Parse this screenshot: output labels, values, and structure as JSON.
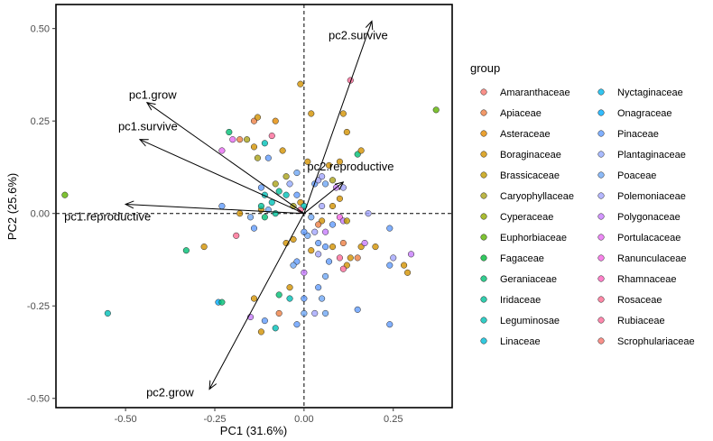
{
  "chart_data": {
    "type": "scatter",
    "xlabel": "PC1 (31.6%)",
    "ylabel": "PC2 (25.6%)",
    "xlim": [
      -0.695,
      0.415
    ],
    "ylim": [
      -0.525,
      0.565
    ],
    "x_ticks": [
      -0.5,
      -0.25,
      0.0,
      0.25
    ],
    "x_tick_labels": [
      "-0.50",
      "-0.25",
      "0.00",
      "0.25"
    ],
    "y_ticks": [
      -0.5,
      -0.25,
      0.0,
      0.25,
      0.5
    ],
    "y_tick_labels": [
      "-0.50",
      "-0.25",
      "0.00",
      "0.25",
      "0.50"
    ],
    "grid": false,
    "reference_lines": {
      "x": 0,
      "y": 0
    },
    "legend": {
      "title": "group",
      "placement": "right",
      "groups": [
        {
          "name": "Amaranthaceae",
          "color": "#F8766D"
        },
        {
          "name": "Apiaceae",
          "color": "#EE8043"
        },
        {
          "name": "Asteraceae",
          "color": "#E38900"
        },
        {
          "name": "Boraginaceae",
          "color": "#D39200"
        },
        {
          "name": "Brassicaceae",
          "color": "#C09B00"
        },
        {
          "name": "Caryophyllaceae",
          "color": "#AAA219"
        },
        {
          "name": "Cyperaceae",
          "color": "#93AA00"
        },
        {
          "name": "Euphorbiaceae",
          "color": "#5EB300"
        },
        {
          "name": "Fagaceae",
          "color": "#00BA38"
        },
        {
          "name": "Geraniaceae",
          "color": "#00BF74"
        },
        {
          "name": "Iridaceae",
          "color": "#00C19A"
        },
        {
          "name": "Leguminosae",
          "color": "#00C0B8"
        },
        {
          "name": "Linaceae",
          "color": "#00BCD6"
        },
        {
          "name": "Nyctaginaceae",
          "color": "#00B6EB"
        },
        {
          "name": "Onagraceae",
          "color": "#00ABFD"
        },
        {
          "name": "Pinaceae",
          "color": "#619CFF"
        },
        {
          "name": "Plantaginaceae",
          "color": "#93AAFF"
        },
        {
          "name": "Poaceae",
          "color": "#6FA8F5"
        },
        {
          "name": "Polemoniaceae",
          "color": "#A3A5FF"
        },
        {
          "name": "Polygonaceae",
          "color": "#C77CFF"
        },
        {
          "name": "Portulacaceae",
          "color": "#E76BF3"
        },
        {
          "name": "Ranunculaceae",
          "color": "#F564E3"
        },
        {
          "name": "Rhamnaceae",
          "color": "#FF62BC"
        },
        {
          "name": "Rosaceae",
          "color": "#FF6C91"
        },
        {
          "name": "Rubiaceae",
          "color": "#FF6A98"
        },
        {
          "name": "Scrophulariaceae",
          "color": "#F8766D"
        }
      ]
    },
    "loadings": [
      {
        "name": "pc2.survive",
        "x": 0.19,
        "y": 0.52
      },
      {
        "name": "pc1.grow",
        "x": -0.44,
        "y": 0.3
      },
      {
        "name": "pc1.survive",
        "x": -0.46,
        "y": 0.2
      },
      {
        "name": "pc2.reproductive",
        "x": 0.11,
        "y": 0.085
      },
      {
        "name": "pc1.reproductive",
        "x": -0.5,
        "y": 0.025
      },
      {
        "name": "pc2.grow",
        "x": -0.265,
        "y": -0.475
      }
    ],
    "points": [
      {
        "x": -0.67,
        "y": 0.05,
        "g": "Euphorbiaceae"
      },
      {
        "x": 0.37,
        "y": 0.28,
        "g": "Euphorbiaceae"
      },
      {
        "x": -0.55,
        "y": -0.27,
        "g": "Leguminosae"
      },
      {
        "x": -0.33,
        "y": -0.1,
        "g": "Geraniaceae"
      },
      {
        "x": -0.28,
        "y": -0.09,
        "g": "Boraginaceae"
      },
      {
        "x": -0.24,
        "y": -0.24,
        "g": "Onagraceae"
      },
      {
        "x": -0.23,
        "y": -0.24,
        "g": "Geraniaceae"
      },
      {
        "x": -0.23,
        "y": 0.17,
        "g": "Portulacaceae"
      },
      {
        "x": -0.2,
        "y": 0.2,
        "g": "Portulacaceae"
      },
      {
        "x": -0.21,
        "y": 0.22,
        "g": "Geraniaceae"
      },
      {
        "x": -0.18,
        "y": 0.2,
        "g": "Apiaceae"
      },
      {
        "x": -0.16,
        "y": 0.2,
        "g": "Caryophyllaceae"
      },
      {
        "x": -0.14,
        "y": 0.25,
        "g": "Apiaceae"
      },
      {
        "x": -0.13,
        "y": 0.26,
        "g": "Boraginaceae"
      },
      {
        "x": -0.14,
        "y": 0.18,
        "g": "Boraginaceae"
      },
      {
        "x": -0.13,
        "y": 0.15,
        "g": "Caryophyllaceae"
      },
      {
        "x": -0.11,
        "y": 0.19,
        "g": "Leguminosae"
      },
      {
        "x": -0.09,
        "y": 0.21,
        "g": "Rubiaceae"
      },
      {
        "x": -0.08,
        "y": 0.25,
        "g": "Asteraceae"
      },
      {
        "x": -0.06,
        "y": 0.17,
        "g": "Boraginaceae"
      },
      {
        "x": -0.1,
        "y": 0.15,
        "g": "Pinaceae"
      },
      {
        "x": -0.12,
        "y": 0.07,
        "g": "Pinaceae"
      },
      {
        "x": -0.11,
        "y": 0.05,
        "g": "Leguminosae"
      },
      {
        "x": -0.12,
        "y": 0.01,
        "g": "Boraginaceae"
      },
      {
        "x": -0.1,
        "y": 0.01,
        "g": "Poaceae"
      },
      {
        "x": -0.08,
        "y": 0.0,
        "g": "Iridaceae"
      },
      {
        "x": -0.09,
        "y": 0.03,
        "g": "Leguminosae"
      },
      {
        "x": -0.07,
        "y": 0.06,
        "g": "Iridaceae"
      },
      {
        "x": -0.05,
        "y": 0.05,
        "g": "Leguminosae"
      },
      {
        "x": -0.04,
        "y": 0.08,
        "g": "Plantaginaceae"
      },
      {
        "x": -0.03,
        "y": 0.02,
        "g": "Caryophyllaceae"
      },
      {
        "x": -0.02,
        "y": 0.05,
        "g": "Pinaceae"
      },
      {
        "x": -0.01,
        "y": 0.03,
        "g": "Boraginaceae"
      },
      {
        "x": -0.05,
        "y": 0.1,
        "g": "Caryophyllaceae"
      },
      {
        "x": -0.02,
        "y": 0.11,
        "g": "Poaceae"
      },
      {
        "x": -0.01,
        "y": 0.35,
        "g": "Boraginaceae"
      },
      {
        "x": 0.02,
        "y": 0.27,
        "g": "Boraginaceae"
      },
      {
        "x": 0.01,
        "y": 0.14,
        "g": "Boraginaceae"
      },
      {
        "x": 0.03,
        "y": 0.08,
        "g": "Pinaceae"
      },
      {
        "x": 0.04,
        "y": 0.09,
        "g": "Polemoniaceae"
      },
      {
        "x": 0.05,
        "y": 0.1,
        "g": "Polemoniaceae"
      },
      {
        "x": 0.06,
        "y": 0.08,
        "g": "Poaceae"
      },
      {
        "x": 0.07,
        "y": 0.13,
        "g": "Boraginaceae"
      },
      {
        "x": 0.08,
        "y": 0.09,
        "g": "Caryophyllaceae"
      },
      {
        "x": 0.1,
        "y": 0.14,
        "g": "Boraginaceae"
      },
      {
        "x": 0.11,
        "y": 0.27,
        "g": "Boraginaceae"
      },
      {
        "x": 0.12,
        "y": 0.22,
        "g": "Boraginaceae"
      },
      {
        "x": 0.13,
        "y": 0.36,
        "g": "Rubiaceae"
      },
      {
        "x": 0.15,
        "y": 0.16,
        "g": "Geraniaceae"
      },
      {
        "x": 0.16,
        "y": 0.17,
        "g": "Boraginaceae"
      },
      {
        "x": 0.09,
        "y": 0.07,
        "g": "Polygonaceae"
      },
      {
        "x": 0.11,
        "y": 0.07,
        "g": "Polemoniaceae"
      },
      {
        "x": 0.1,
        "y": 0.04,
        "g": "Boraginaceae"
      },
      {
        "x": 0.08,
        "y": 0.02,
        "g": "Boraginaceae"
      },
      {
        "x": 0.1,
        "y": -0.01,
        "g": "Ranunculaceae"
      },
      {
        "x": 0.11,
        "y": -0.02,
        "g": "Polygonaceae"
      },
      {
        "x": 0.12,
        "y": -0.02,
        "g": "Brassicaceae"
      },
      {
        "x": 0.08,
        "y": -0.03,
        "g": "Pinaceae"
      },
      {
        "x": 0.05,
        "y": -0.02,
        "g": "Boraginaceae"
      },
      {
        "x": 0.04,
        "y": -0.03,
        "g": "Apiaceae"
      },
      {
        "x": 0.06,
        "y": -0.05,
        "g": "Polygonaceae"
      },
      {
        "x": 0.03,
        "y": -0.05,
        "g": "Polemoniaceae"
      },
      {
        "x": 0.01,
        "y": -0.06,
        "g": "Poaceae"
      },
      {
        "x": 0.04,
        "y": -0.08,
        "g": "Pinaceae"
      },
      {
        "x": 0.02,
        "y": -0.1,
        "g": "Boraginaceae"
      },
      {
        "x": 0.0,
        "y": -0.16,
        "g": "Polygonaceae"
      },
      {
        "x": 0.06,
        "y": -0.09,
        "g": "Pinaceae"
      },
      {
        "x": 0.04,
        "y": -0.11,
        "g": "Polemoniaceae"
      },
      {
        "x": 0.07,
        "y": -0.13,
        "g": "Pinaceae"
      },
      {
        "x": 0.06,
        "y": -0.17,
        "g": "Poaceae"
      },
      {
        "x": 0.04,
        "y": -0.2,
        "g": "Pinaceae"
      },
      {
        "x": 0.05,
        "y": -0.23,
        "g": "Poaceae"
      },
      {
        "x": 0.06,
        "y": -0.27,
        "g": "Poaceae"
      },
      {
        "x": 0.03,
        "y": -0.27,
        "g": "Polemoniaceae"
      },
      {
        "x": 0.0,
        "y": -0.23,
        "g": "Pinaceae"
      },
      {
        "x": 0.0,
        "y": -0.27,
        "g": "Poaceae"
      },
      {
        "x": -0.02,
        "y": -0.3,
        "g": "Pinaceae"
      },
      {
        "x": -0.02,
        "y": -0.13,
        "g": "Pinaceae"
      },
      {
        "x": -0.03,
        "y": -0.14,
        "g": "Poaceae"
      },
      {
        "x": 0.0,
        "y": -0.05,
        "g": "Pinaceae"
      },
      {
        "x": -0.03,
        "y": -0.07,
        "g": "Boraginaceae"
      },
      {
        "x": -0.05,
        "y": -0.08,
        "g": "Boraginaceae"
      },
      {
        "x": -0.04,
        "y": -0.2,
        "g": "Boraginaceae"
      },
      {
        "x": -0.04,
        "y": -0.23,
        "g": "Leguminosae"
      },
      {
        "x": -0.07,
        "y": -0.22,
        "g": "Geraniaceae"
      },
      {
        "x": -0.07,
        "y": -0.27,
        "g": "Apiaceae"
      },
      {
        "x": -0.11,
        "y": -0.29,
        "g": "Pinaceae"
      },
      {
        "x": -0.12,
        "y": -0.32,
        "g": "Boraginaceae"
      },
      {
        "x": -0.14,
        "y": -0.23,
        "g": "Boraginaceae"
      },
      {
        "x": -0.15,
        "y": -0.28,
        "g": "Polygonaceae"
      },
      {
        "x": -0.08,
        "y": -0.31,
        "g": "Leguminosae"
      },
      {
        "x": -0.12,
        "y": 0.02,
        "g": "Iridaceae"
      },
      {
        "x": -0.11,
        "y": -0.01,
        "g": "Geraniaceae"
      },
      {
        "x": -0.18,
        "y": 0.0,
        "g": "Boraginaceae"
      },
      {
        "x": -0.15,
        "y": -0.01,
        "g": "Poaceae"
      },
      {
        "x": -0.14,
        "y": -0.04,
        "g": "Pinaceae"
      },
      {
        "x": -0.19,
        "y": -0.06,
        "g": "Rosaceae"
      },
      {
        "x": -0.23,
        "y": 0.02,
        "g": "Pinaceae"
      },
      {
        "x": -0.08,
        "y": 0.08,
        "g": "Caryophyllaceae"
      },
      {
        "x": 0.08,
        "y": -0.09,
        "g": "Boraginaceae"
      },
      {
        "x": 0.1,
        "y": -0.12,
        "g": "Rubiaceae"
      },
      {
        "x": 0.11,
        "y": -0.08,
        "g": "Apiaceae"
      },
      {
        "x": 0.12,
        "y": -0.14,
        "g": "Boraginaceae"
      },
      {
        "x": 0.13,
        "y": -0.12,
        "g": "Boraginaceae"
      },
      {
        "x": 0.11,
        "y": -0.15,
        "g": "Rubiaceae"
      },
      {
        "x": 0.15,
        "y": -0.12,
        "g": "Apiaceae"
      },
      {
        "x": 0.16,
        "y": -0.09,
        "g": "Boraginaceae"
      },
      {
        "x": 0.2,
        "y": -0.09,
        "g": "Boraginaceae"
      },
      {
        "x": 0.24,
        "y": -0.14,
        "g": "Pinaceae"
      },
      {
        "x": 0.25,
        "y": -0.12,
        "g": "Polemoniaceae"
      },
      {
        "x": 0.28,
        "y": -0.14,
        "g": "Boraginaceae"
      },
      {
        "x": 0.29,
        "y": -0.16,
        "g": "Boraginaceae"
      },
      {
        "x": 0.3,
        "y": -0.11,
        "g": "Polygonaceae"
      },
      {
        "x": 0.24,
        "y": -0.04,
        "g": "Pinaceae"
      },
      {
        "x": 0.17,
        "y": -0.08,
        "g": "Polygonaceae"
      },
      {
        "x": 0.15,
        "y": -0.26,
        "g": "Pinaceae"
      },
      {
        "x": 0.24,
        "y": -0.3,
        "g": "Pinaceae"
      },
      {
        "x": 0.18,
        "y": 0.0,
        "g": "Polemoniaceae"
      },
      {
        "x": 0.05,
        "y": 0.02,
        "g": "Polemoniaceae"
      },
      {
        "x": 0.02,
        "y": -0.01,
        "g": "Poaceae"
      },
      {
        "x": 0.0,
        "y": 0.02,
        "g": "Leguminosae"
      },
      {
        "x": -0.01,
        "y": 0.01,
        "g": "Rubiaceae"
      }
    ]
  }
}
